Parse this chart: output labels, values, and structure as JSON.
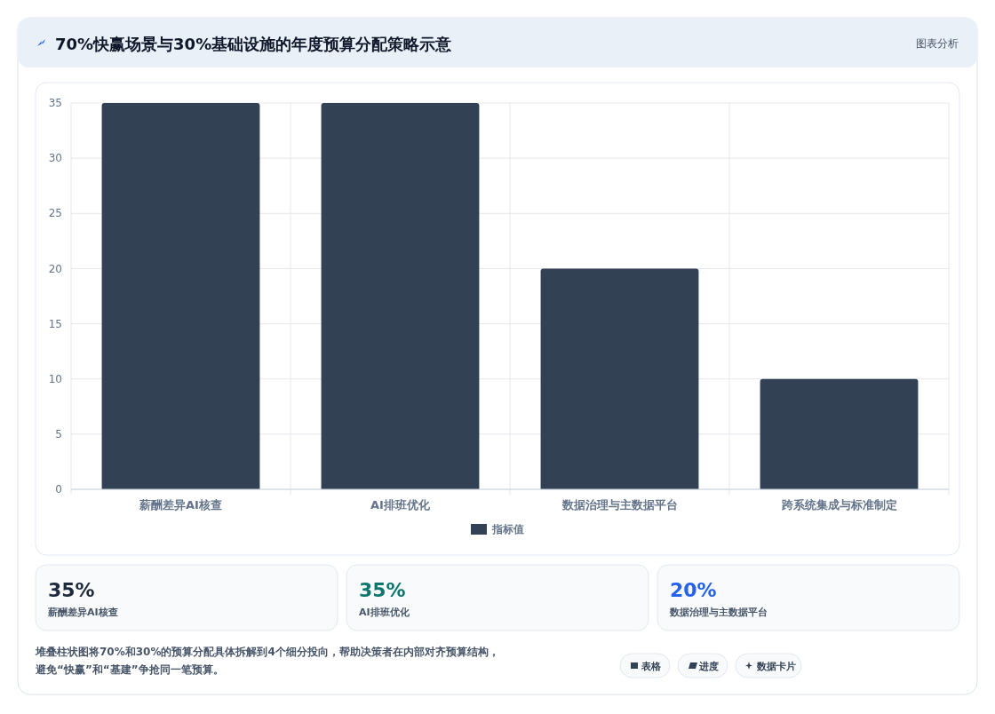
{
  "chart_data": [
    {
      "type": "bar",
      "title": "70%快赢场景与30%基础设施的年度预算分配策略示意",
      "annotations": [
        "图表分析"
      ],
      "categories": [
        "薪酬差异AI核查",
        "AI排班优化",
        "数据治理与主数据平台",
        "跨系统集成与标准制定"
      ],
      "series": [
        {
          "name": "指标值",
          "color": "#334155",
          "values": [
            35,
            35,
            20,
            10
          ]
        }
      ],
      "ylim": [
        0,
        35
      ],
      "yticks": [
        0,
        5,
        10,
        15,
        20,
        25,
        30,
        35
      ],
      "grid": true,
      "legend": "bottom"
    },
    {
      "type": "other",
      "categories": [
        "薪酬差异AI核查",
        "AI排班优化",
        "数据治理与主数据平台"
      ],
      "value_labels": [
        "35%",
        "35%",
        "20%"
      ],
      "annotations": [
        "堆叠柱状图将70%和30%的预算分配具体拆解到4个细分投向，帮助决策者在内部对齐预算结构，",
        "避免“快赢”和“基建”争抢同一笔预算。",
        "表格",
        "进度",
        "数据卡片"
      ]
    }
  ]
}
